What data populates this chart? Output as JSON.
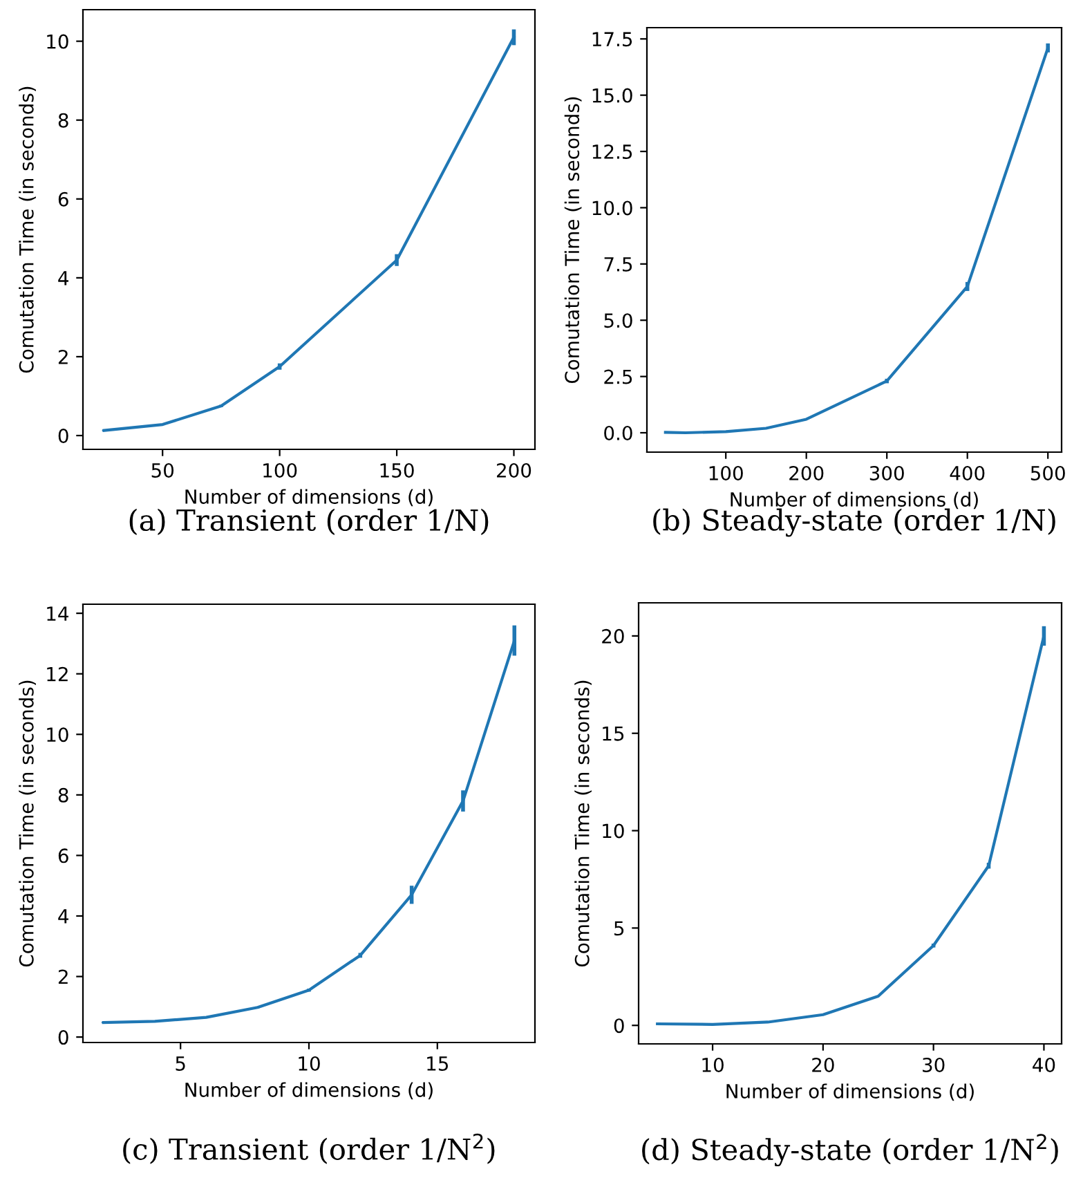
{
  "chart_data": [
    {
      "type": "line",
      "title": "(a) Transient (order 1/N)",
      "xlabel": "Number of dimensions (d)",
      "ylabel": "Comutation Time (in seconds)",
      "x": [
        25,
        50,
        75,
        100,
        150,
        200
      ],
      "series": [
        {
          "color": "#1f77b4",
          "values": [
            0.13,
            0.28,
            0.75,
            1.75,
            4.45,
            10.1
          ],
          "errors": [
            0.02,
            0.02,
            0.03,
            0.08,
            0.15,
            0.2
          ]
        }
      ],
      "xlim": [
        16,
        209
      ],
      "xticks": [
        50,
        100,
        150,
        200
      ],
      "ylim": [
        -0.35,
        10.8
      ],
      "yticks": [
        0,
        2,
        4,
        6,
        8,
        10
      ],
      "grid": false,
      "legend": false
    },
    {
      "type": "line",
      "title": "(b) Steady-state (order 1/N)",
      "xlabel": "Number of dimensions (d)",
      "ylabel": "Comutation Time (in seconds)",
      "x": [
        25,
        50,
        100,
        150,
        200,
        300,
        400,
        500
      ],
      "series": [
        {
          "color": "#1f77b4",
          "values": [
            0.02,
            0.0,
            0.05,
            0.2,
            0.6,
            2.3,
            6.5,
            17.1
          ],
          "errors": [
            null,
            null,
            null,
            null,
            null,
            0.1,
            0.2,
            0.2
          ]
        }
      ],
      "xlim": [
        2,
        517
      ],
      "xticks": [
        100,
        200,
        300,
        400,
        500
      ],
      "ylim": [
        -0.86,
        18.0
      ],
      "yticks": [
        {
          "value": 0,
          "label": "0.0"
        },
        {
          "value": 2.5,
          "label": "2.5"
        },
        {
          "value": 5,
          "label": "5.0"
        },
        {
          "value": 7.5,
          "label": "7.5"
        },
        {
          "value": 10,
          "label": "10.0"
        },
        {
          "value": 12.5,
          "label": "12.5"
        },
        {
          "value": 15,
          "label": "15.0"
        },
        {
          "value": 17.5,
          "label": "17.5"
        }
      ],
      "grid": false,
      "legend": false
    },
    {
      "type": "line",
      "title": "(c) Transient (order 1/N$^{2}$)",
      "xlabel": "Number of dimensions (d)",
      "ylabel": "Comutation Time (in seconds)",
      "x": [
        2,
        4,
        6,
        8,
        10,
        12,
        14,
        16,
        18
      ],
      "series": [
        {
          "color": "#1f77b4",
          "values": [
            0.48,
            0.52,
            0.65,
            0.98,
            1.55,
            2.7,
            4.7,
            7.8,
            13.1
          ],
          "errors": [
            0.02,
            0.02,
            0.02,
            0.03,
            0.05,
            0.08,
            0.3,
            0.35,
            0.5
          ]
        }
      ],
      "xlim": [
        1.2,
        18.8
      ],
      "xticks": [
        5,
        10,
        15
      ],
      "ylim": [
        -0.18,
        14.3
      ],
      "yticks": [
        0,
        2,
        4,
        6,
        8,
        10,
        12,
        14
      ],
      "grid": false,
      "legend": false
    },
    {
      "type": "line",
      "title": "(d) Steady-state (order 1/N$^{2}$)",
      "xlabel": "Number of dimensions (d)",
      "ylabel": "Comutation Time (in seconds)",
      "x": [
        5,
        10,
        15,
        20,
        25,
        30,
        35,
        40
      ],
      "series": [
        {
          "color": "#1f77b4",
          "values": [
            0.08,
            0.05,
            0.17,
            0.55,
            1.5,
            4.1,
            8.2,
            20.0
          ],
          "errors": [
            null,
            null,
            null,
            null,
            null,
            0.1,
            0.15,
            0.5
          ]
        }
      ],
      "xlim": [
        3.3,
        41.6
      ],
      "xticks": [
        10,
        20,
        30,
        40
      ],
      "ylim": [
        -0.95,
        21.7
      ],
      "yticks": [
        0,
        5,
        10,
        15,
        20
      ],
      "grid": false,
      "legend": false
    }
  ]
}
